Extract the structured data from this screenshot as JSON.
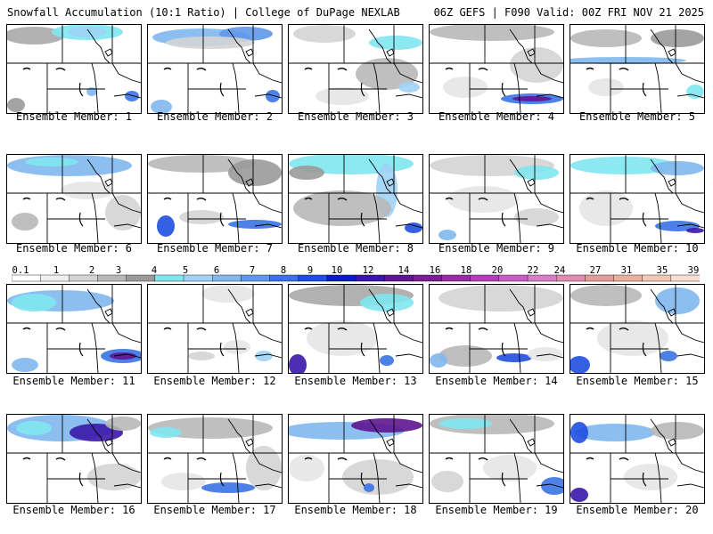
{
  "header": {
    "left": "Snowfall Accumulation (10:1 Ratio) | College of DuPage NEXLAB",
    "right": "06Z GEFS | F090 Valid: 00Z FRI NOV 21 2025"
  },
  "caption_prefix": "Ensemble Member:",
  "members": [
    {
      "label": "Ensemble Member: 1"
    },
    {
      "label": "Ensemble Member: 2"
    },
    {
      "label": "Ensemble Member: 3"
    },
    {
      "label": "Ensemble Member: 4"
    },
    {
      "label": "Ensemble Member: 5"
    },
    {
      "label": "Ensemble Member: 6"
    },
    {
      "label": "Ensemble Member: 7"
    },
    {
      "label": "Ensemble Member: 8"
    },
    {
      "label": "Ensemble Member: 9"
    },
    {
      "label": "Ensemble Member: 10"
    },
    {
      "label": "Ensemble Member: 11"
    },
    {
      "label": "Ensemble Member: 12"
    },
    {
      "label": "Ensemble Member: 13"
    },
    {
      "label": "Ensemble Member: 14"
    },
    {
      "label": "Ensemble Member: 15"
    },
    {
      "label": "Ensemble Member: 16"
    },
    {
      "label": "Ensemble Member: 17"
    },
    {
      "label": "Ensemble Member: 18"
    },
    {
      "label": "Ensemble Member: 19"
    },
    {
      "label": "Ensemble Member: 20"
    }
  ],
  "colorbar": {
    "ticks": [
      "0.1",
      "1",
      "2",
      "3",
      "4",
      "5",
      "6",
      "7",
      "8",
      "9",
      "10",
      "12",
      "14",
      "16",
      "18",
      "20",
      "22",
      "24",
      "27",
      "31",
      "35",
      "39"
    ],
    "colors": [
      "#ffffff",
      "#f0f0f0",
      "#d4d4d4",
      "#b8b8b8",
      "#9a9a9a",
      "#7fe6f0",
      "#9fd3f6",
      "#80b8ee",
      "#5f98ea",
      "#3b73e6",
      "#1f4fe0",
      "#0a1cc8",
      "#3a16a8",
      "#5e1590",
      "#7e1c96",
      "#9a2aa8",
      "#b43cbc",
      "#c85cc4",
      "#d87cc8",
      "#e28ab0",
      "#e49a98",
      "#eab09c",
      "#f2c8b2",
      "#f8ddd0"
    ]
  }
}
